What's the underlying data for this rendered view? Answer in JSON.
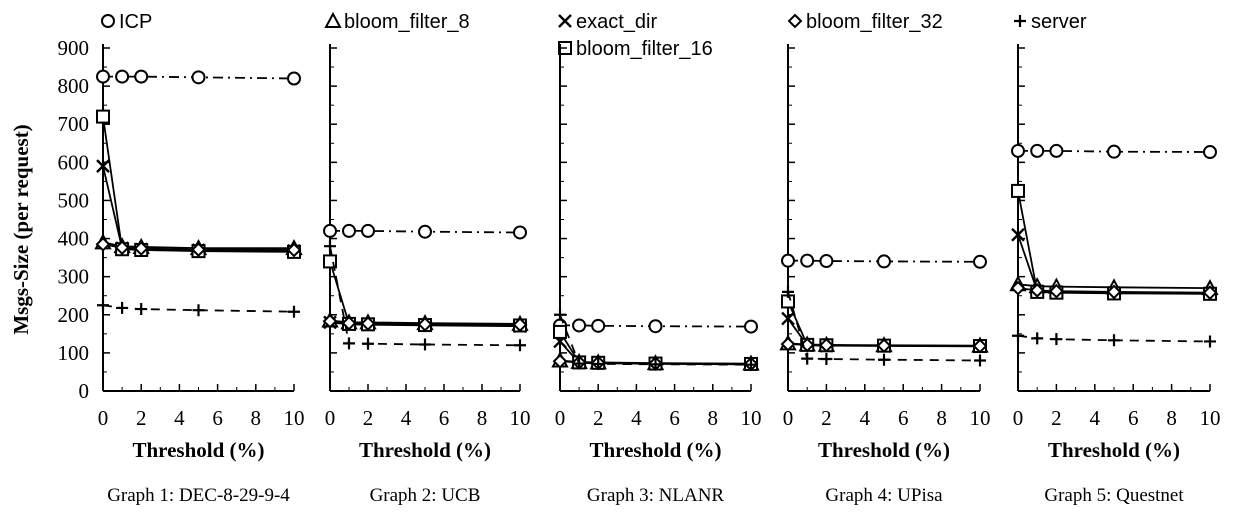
{
  "chart_data": {
    "type": "line",
    "ylabel": "Msgs-Size (per request)",
    "ylim": [
      0,
      900
    ],
    "yticks": [
      0,
      100,
      200,
      300,
      400,
      500,
      600,
      700,
      800,
      900
    ],
    "xlim": [
      0,
      10
    ],
    "xticks": [
      0,
      2,
      4,
      6,
      8,
      10
    ],
    "legend": [
      {
        "name": "ICP",
        "marker": "circle",
        "dash": "dashdot"
      },
      {
        "name": "bloom_filter_8",
        "marker": "triangle",
        "dash": "solid"
      },
      {
        "name": "exact_dir",
        "marker": "x",
        "dash": "solid"
      },
      {
        "name": "bloom_filter_16",
        "marker": "square",
        "dash": "solid"
      },
      {
        "name": "bloom_filter_32",
        "marker": "diamond",
        "dash": "solid"
      },
      {
        "name": "server",
        "marker": "plus",
        "dash": "dashed"
      }
    ],
    "x": [
      0,
      1,
      2,
      5,
      10
    ],
    "panels": [
      {
        "xlabel": "Threshold (%)",
        "caption": "Graph 1: DEC-8-29-9-4",
        "series": [
          {
            "name": "ICP",
            "values": [
              825,
              825,
              825,
              823,
              820
            ]
          },
          {
            "name": "bloom_filter_8",
            "values": [
              390,
              380,
              378,
              375,
              375
            ]
          },
          {
            "name": "exact_dir",
            "values": [
              590,
              375,
              372,
              370,
              368
            ]
          },
          {
            "name": "bloom_filter_16",
            "values": [
              720,
              372,
              370,
              367,
              365
            ]
          },
          {
            "name": "bloom_filter_32",
            "values": [
              385,
              376,
              374,
              371,
              370
            ]
          },
          {
            "name": "server",
            "values": [
              225,
              218,
              215,
              212,
              208
            ]
          }
        ]
      },
      {
        "xlabel": "Threshold (%)",
        "caption": "Graph 2: UCB",
        "series": [
          {
            "name": "ICP",
            "values": [
              420,
              420,
              420,
              418,
              416
            ]
          },
          {
            "name": "bloom_filter_8",
            "values": [
              185,
              180,
              180,
              178,
              176
            ]
          },
          {
            "name": "exact_dir",
            "values": [
              180,
              175,
              174,
              172,
              170
            ]
          },
          {
            "name": "bloom_filter_16",
            "values": [
              340,
              176,
              175,
              173,
              172
            ]
          },
          {
            "name": "bloom_filter_32",
            "values": [
              183,
              178,
              177,
              175,
              174
            ]
          },
          {
            "name": "server",
            "values": [
              380,
              125,
              124,
              122,
              120
            ]
          }
        ]
      },
      {
        "xlabel": "Threshold (%)",
        "caption": "Graph 3: NLANR",
        "series": [
          {
            "name": "ICP",
            "values": [
              172,
              172,
              171,
              170,
              169
            ]
          },
          {
            "name": "bloom_filter_8",
            "values": [
              80,
              76,
              75,
              73,
              72
            ]
          },
          {
            "name": "exact_dir",
            "values": [
              130,
              74,
              73,
              71,
              70
            ]
          },
          {
            "name": "bloom_filter_16",
            "values": [
              155,
              75,
              74,
              72,
              71
            ]
          },
          {
            "name": "bloom_filter_32",
            "values": [
              78,
              75,
              74,
              72,
              71
            ]
          },
          {
            "name": "server",
            "values": [
              200,
              72,
              71,
              70,
              69
            ]
          }
        ]
      },
      {
        "xlabel": "Threshold (%)",
        "caption": "Graph 4: UPisa",
        "series": [
          {
            "name": "ICP",
            "values": [
              342,
              342,
              341,
              340,
              339
            ]
          },
          {
            "name": "bloom_filter_8",
            "values": [
              125,
              122,
              121,
              120,
              119
            ]
          },
          {
            "name": "exact_dir",
            "values": [
              190,
              120,
              119,
              118,
              117
            ]
          },
          {
            "name": "bloom_filter_16",
            "values": [
              235,
              121,
              120,
              119,
              118
            ]
          },
          {
            "name": "bloom_filter_32",
            "values": [
              123,
              121,
              120,
              119,
              118
            ]
          },
          {
            "name": "server",
            "values": [
              260,
              85,
              84,
              82,
              80
            ]
          }
        ]
      },
      {
        "xlabel": "Threshold (%)",
        "caption": "Graph 5: Questnet",
        "series": [
          {
            "name": "ICP",
            "values": [
              630,
              630,
              630,
              628,
              627
            ]
          },
          {
            "name": "bloom_filter_8",
            "values": [
              280,
              275,
              274,
              272,
              270
            ]
          },
          {
            "name": "exact_dir",
            "values": [
              410,
              262,
              260,
              258,
              256
            ]
          },
          {
            "name": "bloom_filter_16",
            "values": [
              525,
              260,
              258,
              256,
              255
            ]
          },
          {
            "name": "bloom_filter_32",
            "values": [
              270,
              264,
              262,
              260,
              258
            ]
          },
          {
            "name": "server",
            "values": [
              145,
              138,
              136,
              133,
              130
            ]
          }
        ]
      }
    ]
  }
}
